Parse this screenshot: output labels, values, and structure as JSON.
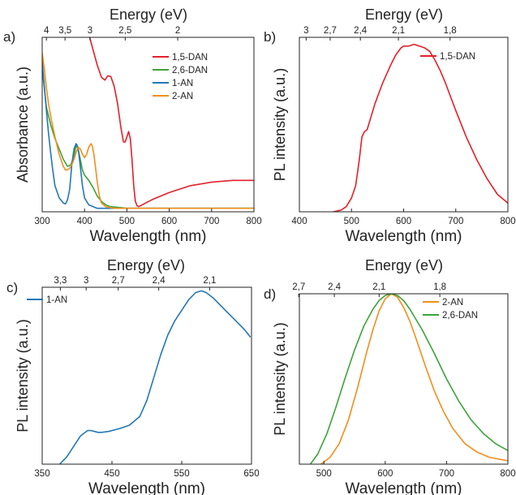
{
  "chart_data": [
    {
      "panel_label": "a)",
      "type": "line",
      "top_axis_label": "Energy (eV)",
      "top_ticks": [
        "4",
        "3,5",
        "3",
        "2,5",
        "2"
      ],
      "top_tick_wavelengths": [
        310,
        354,
        413,
        496,
        620
      ],
      "xlabel": "Wavelength (nm)",
      "ylabel": "Absorbance (a.u.)",
      "xlim": [
        300,
        800
      ],
      "ylim": [
        0,
        1
      ],
      "x_ticks": [
        "300",
        "400",
        "500",
        "600",
        "700",
        "800"
      ],
      "legend_position": "top-right",
      "series": [
        {
          "name": "1,5-DAN",
          "color": "#e4202a",
          "x": [
            412,
            420,
            430,
            440,
            448,
            455,
            462,
            470,
            478,
            486,
            492,
            496,
            500,
            504,
            508,
            512,
            516,
            520,
            524,
            528,
            540,
            560,
            600,
            650,
            700,
            750,
            800
          ],
          "y": [
            1.0,
            0.93,
            0.84,
            0.77,
            0.755,
            0.78,
            0.775,
            0.72,
            0.62,
            0.48,
            0.4,
            0.4,
            0.43,
            0.46,
            0.42,
            0.3,
            0.15,
            0.06,
            0.035,
            0.03,
            0.045,
            0.07,
            0.11,
            0.15,
            0.17,
            0.18,
            0.18
          ]
        },
        {
          "name": "2,6-DAN",
          "color": "#3ea33a",
          "x": [
            300,
            310,
            320,
            330,
            340,
            350,
            360,
            368,
            375,
            380,
            385,
            390,
            395,
            400,
            410,
            420,
            430,
            440,
            450,
            460,
            480,
            500,
            550,
            600,
            700,
            800
          ],
          "y": [
            0.82,
            0.6,
            0.5,
            0.42,
            0.36,
            0.3,
            0.26,
            0.27,
            0.32,
            0.38,
            0.36,
            0.3,
            0.24,
            0.21,
            0.18,
            0.14,
            0.09,
            0.06,
            0.04,
            0.03,
            0.025,
            0.02,
            0.02,
            0.02,
            0.02,
            0.02
          ]
        },
        {
          "name": "1-AN",
          "color": "#2278b5",
          "x": [
            300,
            305,
            310,
            315,
            320,
            325,
            330,
            340,
            350,
            355,
            360,
            365,
            370,
            375,
            380,
            383,
            386,
            390,
            395,
            400,
            410,
            420,
            430,
            450,
            500,
            600,
            700,
            800
          ],
          "y": [
            0.86,
            0.72,
            0.58,
            0.45,
            0.34,
            0.24,
            0.15,
            0.08,
            0.05,
            0.045,
            0.07,
            0.13,
            0.27,
            0.36,
            0.39,
            0.38,
            0.34,
            0.26,
            0.15,
            0.08,
            0.04,
            0.03,
            0.02,
            0.02,
            0.02,
            0.02,
            0.02,
            0.02
          ]
        },
        {
          "name": "2-AN",
          "color": "#f28e1e",
          "x": [
            300,
            305,
            310,
            315,
            320,
            330,
            340,
            350,
            355,
            360,
            365,
            370,
            375,
            380,
            385,
            390,
            395,
            400,
            405,
            410,
            415,
            418,
            422,
            425,
            430,
            435,
            440,
            450,
            470,
            500,
            600,
            700,
            800
          ],
          "y": [
            0.91,
            0.82,
            0.71,
            0.62,
            0.55,
            0.43,
            0.33,
            0.26,
            0.24,
            0.24,
            0.25,
            0.27,
            0.3,
            0.34,
            0.37,
            0.36,
            0.33,
            0.31,
            0.33,
            0.37,
            0.39,
            0.38,
            0.33,
            0.27,
            0.17,
            0.09,
            0.05,
            0.03,
            0.02,
            0.02,
            0.02,
            0.02,
            0.02
          ]
        }
      ]
    },
    {
      "panel_label": "b)",
      "type": "line",
      "top_axis_label": "Energy (eV)",
      "top_ticks": [
        "3",
        "2,7",
        "2,4",
        "2,1",
        "1,8"
      ],
      "top_tick_wavelengths": [
        413,
        459,
        517,
        590,
        689
      ],
      "xlabel": "Wavelength (nm)",
      "ylabel": "PL intensity (a.u.)",
      "xlim": [
        400,
        800
      ],
      "ylim": [
        0,
        1
      ],
      "x_ticks": [
        "400",
        "500",
        "600",
        "700",
        "800"
      ],
      "legend_position": "top-right",
      "series": [
        {
          "name": "1,5-DAN",
          "color": "#e4202a",
          "x": [
            465,
            480,
            490,
            500,
            508,
            515,
            520,
            525,
            530,
            535,
            545,
            560,
            575,
            585,
            595,
            600,
            610,
            620,
            630,
            640,
            650,
            660,
            670,
            680,
            690,
            700,
            720,
            740,
            760,
            780,
            800
          ],
          "y": [
            0.0,
            0.01,
            0.03,
            0.08,
            0.15,
            0.3,
            0.43,
            0.46,
            0.47,
            0.52,
            0.62,
            0.74,
            0.84,
            0.9,
            0.94,
            0.95,
            0.95,
            0.96,
            0.95,
            0.94,
            0.92,
            0.87,
            0.81,
            0.74,
            0.66,
            0.58,
            0.43,
            0.3,
            0.19,
            0.1,
            0.05
          ]
        }
      ]
    },
    {
      "panel_label": "c)",
      "type": "line",
      "top_axis_label": "Energy (eV)",
      "top_ticks": [
        "3,3",
        "3",
        "2,7",
        "2,4",
        "2,1"
      ],
      "top_tick_wavelengths": [
        376,
        413,
        459,
        517,
        590
      ],
      "xlabel": "Wavelength (nm)",
      "ylabel": "PL intensity (a.u.)",
      "xlim": [
        350,
        650
      ],
      "ylim": [
        0,
        1
      ],
      "x_ticks": [
        "350",
        "450",
        "550",
        "650"
      ],
      "legend_position": "top-left",
      "series": [
        {
          "name": "1-AN",
          "color": "#2278b5",
          "x": [
            375,
            385,
            395,
            405,
            415,
            420,
            425,
            430,
            435,
            445,
            460,
            475,
            490,
            500,
            510,
            520,
            530,
            540,
            550,
            560,
            570,
            578,
            585,
            595,
            610,
            625,
            640,
            648
          ],
          "y": [
            0.0,
            0.04,
            0.1,
            0.16,
            0.19,
            0.19,
            0.185,
            0.18,
            0.18,
            0.185,
            0.2,
            0.22,
            0.27,
            0.36,
            0.49,
            0.62,
            0.73,
            0.81,
            0.87,
            0.93,
            0.97,
            0.98,
            0.97,
            0.94,
            0.88,
            0.82,
            0.76,
            0.72
          ]
        }
      ]
    },
    {
      "panel_label": "d)",
      "type": "line",
      "top_axis_label": "Energy (eV)",
      "top_ticks": [
        "2,7",
        "2,4",
        "2,1",
        "1,8"
      ],
      "top_tick_wavelengths": [
        459,
        517,
        590,
        689
      ],
      "xlabel": "Wavelength (nm)",
      "ylabel": "PL intensity (a.u.)",
      "xlim": [
        460,
        800
      ],
      "ylim": [
        0,
        1
      ],
      "x_ticks": [
        "500",
        "600",
        "700",
        "800"
      ],
      "legend_position": "top-right",
      "series": [
        {
          "name": "2-AN",
          "color": "#f28e1e",
          "x": [
            495,
            510,
            525,
            540,
            555,
            570,
            580,
            590,
            600,
            610,
            620,
            630,
            640,
            650,
            665,
            680,
            695,
            710,
            730,
            750,
            770,
            800
          ],
          "y": [
            0.0,
            0.04,
            0.12,
            0.26,
            0.45,
            0.66,
            0.79,
            0.9,
            0.97,
            1.0,
            0.98,
            0.92,
            0.84,
            0.74,
            0.58,
            0.43,
            0.31,
            0.21,
            0.12,
            0.07,
            0.04,
            0.02
          ]
        },
        {
          "name": "2,6-DAN",
          "color": "#3ea33a",
          "x": [
            478,
            490,
            505,
            520,
            535,
            550,
            565,
            580,
            590,
            600,
            610,
            620,
            630,
            640,
            660,
            680,
            700,
            720,
            740,
            760,
            780,
            800
          ],
          "y": [
            0.0,
            0.06,
            0.18,
            0.34,
            0.51,
            0.67,
            0.81,
            0.91,
            0.96,
            0.99,
            1.0,
            0.99,
            0.96,
            0.91,
            0.79,
            0.65,
            0.5,
            0.37,
            0.26,
            0.18,
            0.12,
            0.08
          ]
        }
      ]
    }
  ]
}
